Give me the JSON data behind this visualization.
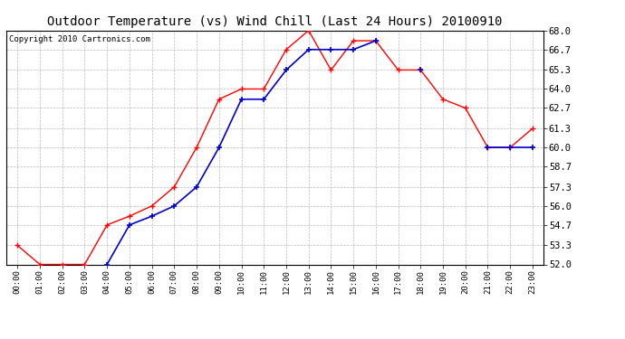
{
  "title": "Outdoor Temperature (vs) Wind Chill (Last 24 Hours) 20100910",
  "copyright": "Copyright 2010 Cartronics.com",
  "x_labels": [
    "00:00",
    "01:00",
    "02:00",
    "03:00",
    "04:00",
    "05:00",
    "06:00",
    "07:00",
    "08:00",
    "09:00",
    "10:00",
    "11:00",
    "12:00",
    "13:00",
    "14:00",
    "15:00",
    "16:00",
    "17:00",
    "18:00",
    "19:00",
    "20:00",
    "21:00",
    "22:00",
    "23:00"
  ],
  "temp_red": [
    53.3,
    52.0,
    52.0,
    52.0,
    54.7,
    55.3,
    56.0,
    57.3,
    60.0,
    63.3,
    64.0,
    64.0,
    66.7,
    68.0,
    65.3,
    67.3,
    67.3,
    65.3,
    65.3,
    63.3,
    62.7,
    60.0,
    60.0,
    61.3
  ],
  "wind_blue": [
    null,
    null,
    null,
    null,
    52.0,
    54.7,
    55.3,
    56.0,
    57.3,
    60.0,
    63.3,
    63.3,
    65.3,
    66.7,
    66.7,
    66.7,
    67.3,
    null,
    65.3,
    null,
    null,
    60.0,
    60.0,
    60.0
  ],
  "ylim": [
    52.0,
    68.0
  ],
  "yticks": [
    52.0,
    53.3,
    54.7,
    56.0,
    57.3,
    58.7,
    60.0,
    61.3,
    62.7,
    64.0,
    65.3,
    66.7,
    68.0
  ],
  "background_color": "#ffffff",
  "plot_bg_color": "#ffffff",
  "grid_color": "#aaaaaa",
  "red_color": "#ff0000",
  "blue_color": "#0000cc",
  "title_fontsize": 10,
  "copyright_fontsize": 6.5
}
